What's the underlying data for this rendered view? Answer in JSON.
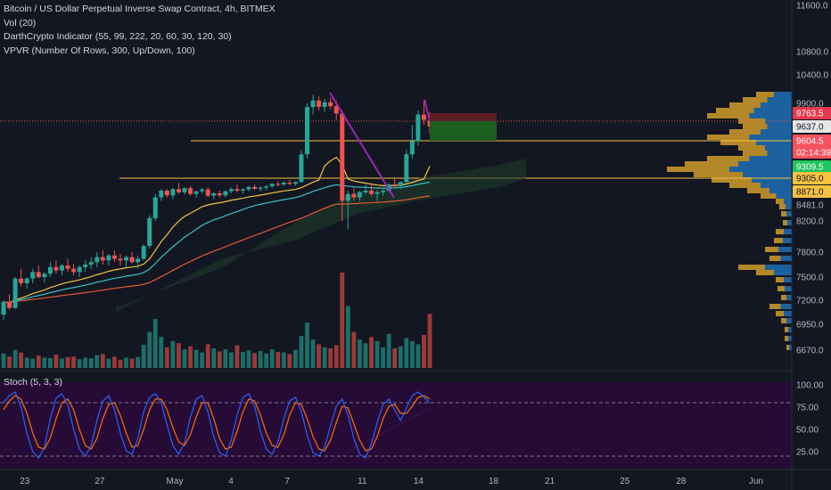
{
  "legend": {
    "title": "Bitcoin / US Dollar Perpetual Inverse Swap Contract, 4h, BITMEX",
    "vol": "Vol (20)",
    "darth": "DarthCrypto Indicator (55, 99, 222, 20, 60, 30, 120, 30)",
    "vpvr": "VPVR (Number Of Rows, 300, Up/Down, 100)"
  },
  "stoch_title": "Stoch (5, 3, 3)",
  "colors": {
    "background": "#131722",
    "up": "#26a69a",
    "down": "#ef5350",
    "vol_up": "#1f7f76",
    "vol_down": "#b5413e",
    "ema_fast": "#f0c243",
    "ema_mid": "#36c3c9",
    "ema_slow": "#e0583a",
    "cloud": "#1e3b2a",
    "trendline": "#9c27b0",
    "hline": "#f5c242",
    "vpvr_up": "#1f6fb5",
    "vpvr_down": "#c6952a",
    "stoch_k": "#2962ff",
    "stoch_d": "#ff6d00",
    "stoch_band": "#2a0a3a"
  },
  "chart_data": {
    "type": "candlestick",
    "title": "Bitcoin / US Dollar Perpetual Inverse Swap Contract, 4h, BITMEX",
    "xaxis_ticks": [
      "23",
      "27",
      "May",
      "4",
      "7",
      "11",
      "14",
      "18",
      "21",
      "25",
      "28",
      "Jun"
    ],
    "xaxis_tick_days": [
      -8,
      -4,
      0,
      3,
      6,
      10,
      13,
      17,
      20,
      24,
      27,
      31
    ],
    "price_axis_ticks": [
      "11600.0",
      "10800.0",
      "10400.0",
      "9900.0",
      "8481.0",
      "8200.0",
      "7800.0",
      "7500.0",
      "7200.0",
      "6950.0",
      "6670.0"
    ],
    "price_axis_values": [
      11600,
      10800,
      10400,
      9900,
      8481,
      8200,
      7800,
      7500,
      7200,
      6950,
      6670
    ],
    "price_tags": [
      {
        "label": "9763.5",
        "value": 9763.5,
        "color": "#e5394f"
      },
      {
        "label": "9637.0",
        "value": 9637.0,
        "color": "#e6e6e6"
      },
      {
        "label": "9604.5",
        "value": 9604.5,
        "color": "#f7525f"
      },
      {
        "label": "02:14:39",
        "value": 9470,
        "color": "#f7525f"
      },
      {
        "label": "9309.5",
        "value": 9309.5,
        "color": "#21c45d"
      },
      {
        "label": "9305.0",
        "value": 9305.0,
        "color": "#f5c242"
      },
      {
        "label": "8871.0",
        "value": 8871.0,
        "color": "#f5c242"
      }
    ],
    "hlines": [
      9604.5,
      9305.0
    ],
    "current_price": 9637.0,
    "stoch_axis_ticks": [
      "100.00",
      "75.00",
      "50.00",
      "25.00"
    ],
    "stoch_axis_values": [
      100,
      75,
      50,
      25
    ],
    "stoch_band": [
      20,
      80
    ],
    "candles": [
      [
        7050,
        7200,
        7000,
        7180
      ],
      [
        7180,
        7280,
        7100,
        7120
      ],
      [
        7120,
        7500,
        7110,
        7480
      ],
      [
        7480,
        7600,
        7380,
        7420
      ],
      [
        7420,
        7500,
        7350,
        7480
      ],
      [
        7480,
        7600,
        7420,
        7560
      ],
      [
        7560,
        7640,
        7480,
        7500
      ],
      [
        7500,
        7560,
        7430,
        7540
      ],
      [
        7540,
        7680,
        7500,
        7620
      ],
      [
        7620,
        7700,
        7540,
        7580
      ],
      [
        7580,
        7660,
        7520,
        7640
      ],
      [
        7640,
        7720,
        7560,
        7600
      ],
      [
        7600,
        7660,
        7520,
        7560
      ],
      [
        7560,
        7640,
        7500,
        7620
      ],
      [
        7620,
        7700,
        7560,
        7650
      ],
      [
        7650,
        7740,
        7600,
        7680
      ],
      [
        7680,
        7800,
        7620,
        7740
      ],
      [
        7740,
        7820,
        7650,
        7700
      ],
      [
        7700,
        7780,
        7640,
        7760
      ],
      [
        7760,
        7820,
        7680,
        7720
      ],
      [
        7720,
        7780,
        7640,
        7700
      ],
      [
        7700,
        7760,
        7620,
        7740
      ],
      [
        7740,
        7800,
        7660,
        7680
      ],
      [
        7680,
        7760,
        7600,
        7720
      ],
      [
        7720,
        7900,
        7700,
        7880
      ],
      [
        7880,
        8300,
        7850,
        8250
      ],
      [
        8250,
        8800,
        8200,
        8700
      ],
      [
        8700,
        8950,
        8600,
        8900
      ],
      [
        8900,
        8950,
        8700,
        8760
      ],
      [
        8760,
        9000,
        8650,
        8950
      ],
      [
        8950,
        9150,
        8800,
        8850
      ],
      [
        8850,
        9000,
        8780,
        8980
      ],
      [
        8980,
        9050,
        8750,
        8800
      ],
      [
        8800,
        8900,
        8700,
        8880
      ],
      [
        8880,
        9000,
        8820,
        8940
      ],
      [
        8940,
        9000,
        8700,
        8750
      ],
      [
        8750,
        8850,
        8650,
        8820
      ],
      [
        8820,
        8900,
        8700,
        8760
      ],
      [
        8760,
        8900,
        8700,
        8880
      ],
      [
        8880,
        9000,
        8820,
        8950
      ],
      [
        8950,
        9100,
        8850,
        8900
      ],
      [
        8900,
        8980,
        8800,
        8940
      ],
      [
        8940,
        9050,
        8880,
        9020
      ],
      [
        9020,
        9100,
        8920,
        8960
      ],
      [
        8960,
        9040,
        8880,
        9000
      ],
      [
        9000,
        9080,
        8920,
        9040
      ],
      [
        9040,
        9150,
        9000,
        9120
      ],
      [
        9120,
        9200,
        9040,
        9100
      ],
      [
        9100,
        9200,
        9060,
        9160
      ],
      [
        9160,
        9250,
        9080,
        9120
      ],
      [
        9120,
        9200,
        9060,
        9180
      ],
      [
        9180,
        9500,
        9150,
        9450
      ],
      [
        9450,
        9900,
        9400,
        9850
      ],
      [
        9850,
        10050,
        9750,
        9950
      ],
      [
        9950,
        10020,
        9800,
        9850
      ],
      [
        9850,
        9980,
        9780,
        9920
      ],
      [
        9920,
        10000,
        9820,
        9860
      ],
      [
        9860,
        9950,
        9700,
        9760
      ],
      [
        9760,
        9800,
        8200,
        8600
      ],
      [
        8600,
        8900,
        8100,
        8800
      ],
      [
        8800,
        9000,
        8600,
        8700
      ],
      [
        8700,
        8900,
        8600,
        8850
      ],
      [
        8850,
        9100,
        8780,
        8900
      ],
      [
        8900,
        9150,
        8750,
        8800
      ],
      [
        8800,
        8900,
        8600,
        8850
      ],
      [
        8850,
        8950,
        8750,
        8900
      ],
      [
        8900,
        9150,
        8850,
        9100
      ],
      [
        9100,
        9300,
        9000,
        9050
      ],
      [
        9050,
        9200,
        8950,
        9180
      ],
      [
        9180,
        9500,
        9150,
        9450
      ],
      [
        9450,
        9650,
        9400,
        9600
      ],
      [
        9600,
        9800,
        9550,
        9750
      ],
      [
        9750,
        9950,
        9650,
        9700
      ],
      [
        9700,
        9780,
        9620,
        9637
      ]
    ],
    "volumes": [
      28,
      22,
      35,
      30,
      20,
      18,
      24,
      20,
      19,
      26,
      18,
      21,
      22,
      17,
      20,
      19,
      25,
      27,
      18,
      22,
      16,
      20,
      18,
      21,
      45,
      70,
      95,
      60,
      40,
      52,
      48,
      36,
      42,
      35,
      30,
      46,
      38,
      32,
      36,
      30,
      44,
      31,
      34,
      29,
      33,
      28,
      36,
      31,
      30,
      27,
      35,
      62,
      88,
      55,
      46,
      40,
      38,
      44,
      185,
      120,
      70,
      55,
      48,
      60,
      52,
      40,
      66,
      38,
      42,
      58,
      52,
      46,
      64,
      105
    ],
    "stoch_k": [
      80,
      88,
      92,
      75,
      45,
      25,
      18,
      30,
      62,
      85,
      90,
      78,
      50,
      28,
      20,
      32,
      60,
      82,
      88,
      72,
      46,
      26,
      22,
      40,
      70,
      86,
      90,
      80,
      55,
      32,
      22,
      35,
      64,
      84,
      88,
      70,
      42,
      24,
      20,
      38,
      66,
      86,
      90,
      76,
      48,
      28,
      22,
      36,
      62,
      82,
      86,
      70,
      44,
      24,
      20,
      30,
      54,
      76,
      84,
      66,
      40,
      22,
      18,
      34,
      58,
      78,
      84,
      72,
      60,
      74,
      88,
      92,
      86,
      80
    ],
    "stoch_d": [
      72,
      82,
      88,
      84,
      68,
      46,
      30,
      28,
      40,
      62,
      80,
      84,
      72,
      50,
      32,
      28,
      40,
      62,
      78,
      80,
      66,
      46,
      30,
      32,
      50,
      72,
      84,
      84,
      72,
      52,
      36,
      32,
      44,
      64,
      80,
      80,
      62,
      40,
      28,
      30,
      48,
      70,
      84,
      82,
      66,
      46,
      32,
      30,
      44,
      66,
      80,
      78,
      62,
      42,
      28,
      26,
      38,
      58,
      76,
      74,
      56,
      38,
      26,
      28,
      42,
      62,
      76,
      78,
      68,
      68,
      76,
      86,
      88,
      84
    ]
  }
}
